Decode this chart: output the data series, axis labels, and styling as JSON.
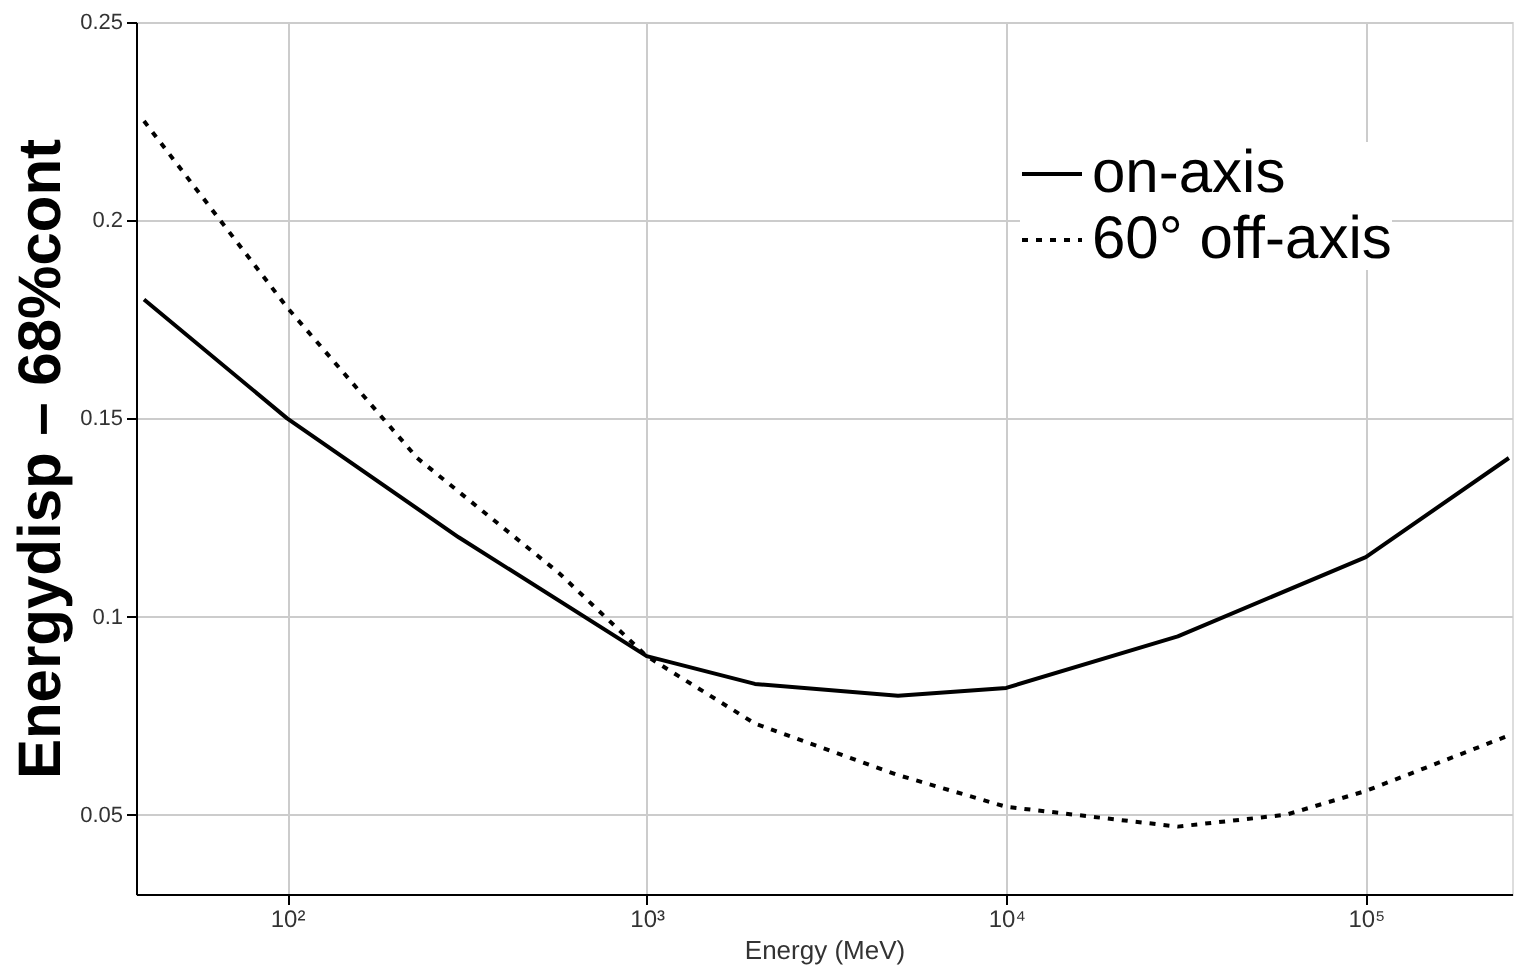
{
  "chart_data": {
    "type": "line",
    "xlabel": "Energy (MeV)",
    "ylabel": "Energydisp – 68%cont",
    "log": "x",
    "xlim": [
      38,
      255000
    ],
    "xticks": [
      {
        "value": 100,
        "label": "10²"
      },
      {
        "value": 1000,
        "label": "10³"
      },
      {
        "value": 10000,
        "label": "10⁴"
      },
      {
        "value": 100000,
        "label": "10⁵"
      }
    ],
    "ylim": [
      0.03,
      0.25
    ],
    "yticks": [
      0.05,
      0.1,
      0.15,
      0.2,
      0.25
    ],
    "grid": true,
    "legend": "top right",
    "marker": "none",
    "series": [
      {
        "name": "on-axis",
        "color": "#000000",
        "line_style": "solid",
        "x": [
          40,
          100,
          300,
          1000,
          2000,
          5000,
          10000,
          30000,
          100000,
          250000
        ],
        "values": [
          0.18,
          0.15,
          0.12,
          0.09,
          0.083,
          0.08,
          0.082,
          0.095,
          0.115,
          0.14
        ]
      },
      {
        "name": "60° off-axis",
        "color": "#000000",
        "line_style": "dotted",
        "x": [
          40,
          100,
          230,
          570,
          1000,
          2000,
          5000,
          10000,
          30000,
          60000,
          100000,
          250000
        ],
        "values": [
          0.225,
          0.178,
          0.14,
          0.111,
          0.09,
          0.073,
          0.06,
          0.052,
          0.047,
          0.05,
          0.056,
          0.07
        ]
      }
    ]
  }
}
